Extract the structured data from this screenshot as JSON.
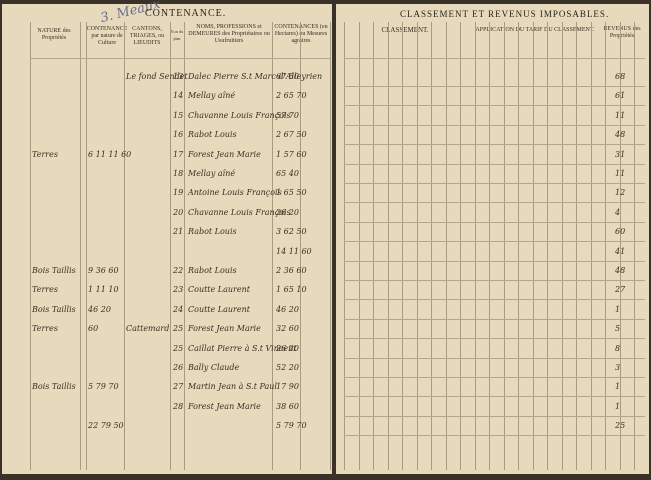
{
  "header": {
    "left_title": "CONTENANCE.",
    "right_title": "CLASSEMENT ET REVENUS IMPOSABLES.",
    "stamp": "3. Meaux"
  },
  "columns": {
    "nature": "NATURE des Propriétés",
    "culture": "CONTENANCE par nature de Culture",
    "place": "CANTONS, TRIAGES, ou LIEUDITS",
    "number": "N.os du plan",
    "name": "NOMS, PROFESSIONS et DEMEURES des Propriétaires ou Usufruitiers",
    "area": "CONTENANCES (en Hectares) ou Mesures agraires",
    "classement": "CLASSEMENT.",
    "tarif": "APPLICATION DU TARIF DU CLASSEMENT.",
    "revenue": "REVENUS des Propriétés"
  },
  "rows": [
    {
      "place": "Le fond Sendet",
      "number": "13",
      "name": "Dalec Pierre S.t Marc d'Alleyrien",
      "area": "67 50",
      "revenue": "68"
    },
    {
      "number": "14",
      "name": "Mellay aîné",
      "area": "2 65 70",
      "revenue": "61"
    },
    {
      "number": "15",
      "name": "Chavanne Louis François",
      "area": "57 70",
      "revenue": "11"
    },
    {
      "number": "16",
      "name": "Rabot Louis",
      "area": "2 67 50",
      "revenue": "48"
    },
    {
      "nature": "Terres",
      "culture": "6 11 11 60",
      "number": "17",
      "name": "Forest Jean Marie",
      "area": "1 57 60",
      "revenue": "31"
    },
    {
      "number": "18",
      "name": "Mellay aîné",
      "area": "65 40",
      "revenue": "11"
    },
    {
      "number": "19",
      "name": "Antoine Louis François",
      "area": "1 65 50",
      "revenue": "12"
    },
    {
      "number": "20",
      "name": "Chavanne Louis François",
      "area": "26 20",
      "revenue": "4"
    },
    {
      "number": "21",
      "name": "Rabot Louis",
      "area": "3 62 50",
      "revenue": "60"
    },
    {
      "area": "14 11 60",
      "revenue": "41"
    },
    {
      "nature": "Bois Taillis",
      "culture": "9 36 60",
      "number": "22",
      "name": "Rabot Louis",
      "area": "2 36 60",
      "revenue": "48"
    },
    {
      "nature": "Terres",
      "culture": "1 11 10",
      "number": "23",
      "name": "Coutte Laurent",
      "area": "1 65 10",
      "revenue": "27"
    },
    {
      "nature": "Bois Taillis",
      "culture": "46 20",
      "number": "24",
      "name": "Coutte Laurent",
      "area": "46 20",
      "revenue": "1"
    },
    {
      "nature": "Terres",
      "culture": "60",
      "place": "Cattemard",
      "number": "25",
      "name": "Forest Jean Marie",
      "area": "32 60",
      "revenue": "5"
    },
    {
      "number": "25",
      "name": "Caillat Pierre à S.t Vincent",
      "area": "26 20",
      "revenue": "8"
    },
    {
      "number": "26",
      "name": "Bally Claude",
      "area": "52 20",
      "revenue": "3"
    },
    {
      "nature": "Bois Taillis",
      "culture": "5 79 70",
      "number": "27",
      "name": "Martin Jean à S.t Paul",
      "area": "17 90",
      "revenue": "1"
    },
    {
      "number": "28",
      "name": "Forest Jean Marie",
      "area": "38 60",
      "revenue": "1"
    },
    {
      "culture": "22 79 50",
      "area": "5 79 70",
      "revenue": "25"
    }
  ]
}
